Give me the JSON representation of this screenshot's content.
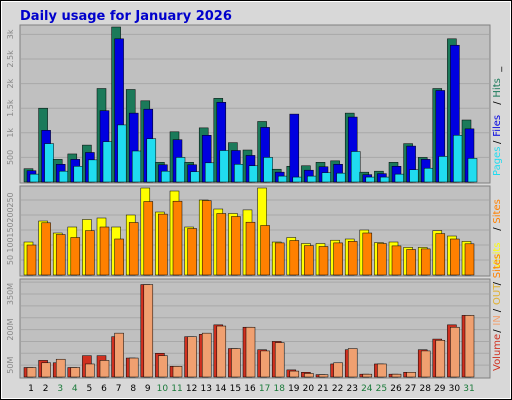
{
  "title": "Daily usage for January 2026",
  "colors": {
    "frame_bg": "#d8d8d8",
    "panel_bg": "#c0c0c0",
    "title": "#0000cc",
    "hits": "#1b7a5a",
    "files": "#0000e0",
    "pages": "#20dcf0",
    "visits": "#ffff00",
    "sites": "#ff8000",
    "volume": "#d03020",
    "in": "#f0a070",
    "out": "#e0b030",
    "axis_text": "#000000",
    "weekend_text": "#1a7a3a",
    "tick_text": "#888888"
  },
  "chart_data": [
    {
      "type": "bar",
      "panel": "hits-files-pages",
      "categories": [
        "1",
        "2",
        "3",
        "4",
        "5",
        "6",
        "7",
        "8",
        "9",
        "10",
        "11",
        "12",
        "13",
        "14",
        "15",
        "16",
        "17",
        "18",
        "19",
        "20",
        "21",
        "22",
        "23",
        "24",
        "25",
        "26",
        "27",
        "28",
        "29",
        "30",
        "31"
      ],
      "weekend_days": [
        "3",
        "4",
        "10",
        "11",
        "17",
        "18",
        "24",
        "25",
        "31"
      ],
      "ylim": [
        0,
        3150
      ],
      "yticks": [
        500,
        1000,
        1500,
        2000,
        2500,
        3000
      ],
      "ytick_labels": [
        "500",
        "1k",
        "1.5k",
        "2k",
        "2.5k",
        "3k"
      ],
      "legend": [
        "Pages",
        "/",
        "Files",
        "/",
        "Hits",
        "_"
      ],
      "series": [
        {
          "name": "Hits",
          "key": "hits",
          "values": [
            270,
            1500,
            460,
            570,
            750,
            1900,
            3150,
            1880,
            1650,
            400,
            1020,
            400,
            1100,
            1700,
            800,
            650,
            1230,
            260,
            320,
            330,
            400,
            430,
            1400,
            200,
            220,
            400,
            780,
            500,
            1900,
            2910,
            1260
          ]
        },
        {
          "name": "Files",
          "key": "files",
          "values": [
            230,
            1050,
            360,
            460,
            600,
            1450,
            2910,
            1400,
            1480,
            350,
            860,
            350,
            950,
            1620,
            640,
            540,
            1110,
            200,
            1380,
            240,
            310,
            360,
            1320,
            150,
            170,
            320,
            730,
            460,
            1860,
            2780,
            1080
          ]
        },
        {
          "name": "Pages",
          "key": "pages",
          "values": [
            160,
            780,
            220,
            320,
            450,
            820,
            1160,
            630,
            880,
            220,
            500,
            210,
            390,
            640,
            360,
            330,
            500,
            120,
            100,
            120,
            190,
            180,
            620,
            100,
            100,
            160,
            250,
            280,
            520,
            950,
            480
          ]
        }
      ]
    },
    {
      "type": "bar",
      "panel": "visits-sites",
      "categories": [
        "1",
        "2",
        "3",
        "4",
        "5",
        "6",
        "7",
        "8",
        "9",
        "10",
        "11",
        "12",
        "13",
        "14",
        "15",
        "16",
        "17",
        "18",
        "19",
        "20",
        "21",
        "22",
        "23",
        "24",
        "25",
        "26",
        "27",
        "28",
        "29",
        "30",
        "31"
      ],
      "ylim": [
        0,
        290
      ],
      "yticks": [
        50,
        100,
        150,
        200,
        250
      ],
      "ytick_labels": [
        "50",
        "100",
        "150",
        "200",
        "250"
      ],
      "legend": [
        "Visits",
        "/",
        "Sites"
      ],
      "series": [
        {
          "name": "Visits",
          "key": "visits",
          "values": [
            110,
            180,
            140,
            160,
            185,
            190,
            160,
            200,
            290,
            210,
            280,
            160,
            250,
            220,
            205,
            217,
            290,
            110,
            125,
            105,
            105,
            116,
            120,
            150,
            108,
            110,
            92,
            92,
            148,
            130,
            112
          ]
        },
        {
          "name": "Sites",
          "key": "sites",
          "values": [
            100,
            174,
            135,
            125,
            148,
            160,
            120,
            175,
            245,
            203,
            246,
            155,
            248,
            205,
            195,
            176,
            165,
            107,
            115,
            98,
            95,
            107,
            112,
            140,
            105,
            97,
            85,
            87,
            138,
            120,
            104
          ]
        }
      ]
    },
    {
      "type": "bar",
      "panel": "volume",
      "categories": [
        "1",
        "2",
        "3",
        "4",
        "5",
        "6",
        "7",
        "8",
        "9",
        "10",
        "11",
        "12",
        "13",
        "14",
        "15",
        "16",
        "17",
        "18",
        "19",
        "20",
        "21",
        "22",
        "23",
        "24",
        "25",
        "26",
        "27",
        "28",
        "29",
        "30",
        "31"
      ],
      "ylim": [
        0,
        405
      ],
      "yticks": [
        50,
        100,
        150,
        200,
        250,
        300,
        350,
        400
      ],
      "ytick_labels": [
        "50M",
        "",
        "",
        "200M",
        "",
        "",
        "350M",
        ""
      ],
      "legend": [
        "Volume",
        "/",
        "IN",
        "/",
        "OUT",
        "/",
        "Sites"
      ],
      "series": [
        {
          "name": "Volume",
          "key": "volume",
          "values": [
            40,
            70,
            60,
            40,
            90,
            90,
            170,
            80,
            390,
            100,
            45,
            170,
            180,
            220,
            120,
            210,
            115,
            150,
            30,
            20,
            10,
            55,
            115,
            12,
            55,
            12,
            20,
            115,
            160,
            220,
            260
          ]
        },
        {
          "name": "IN",
          "key": "in",
          "values": [
            40,
            60,
            75,
            40,
            55,
            70,
            185,
            80,
            390,
            90,
            45,
            170,
            185,
            215,
            120,
            210,
            110,
            145,
            25,
            15,
            10,
            60,
            120,
            12,
            55,
            12,
            20,
            110,
            155,
            210,
            260
          ]
        }
      ]
    }
  ]
}
